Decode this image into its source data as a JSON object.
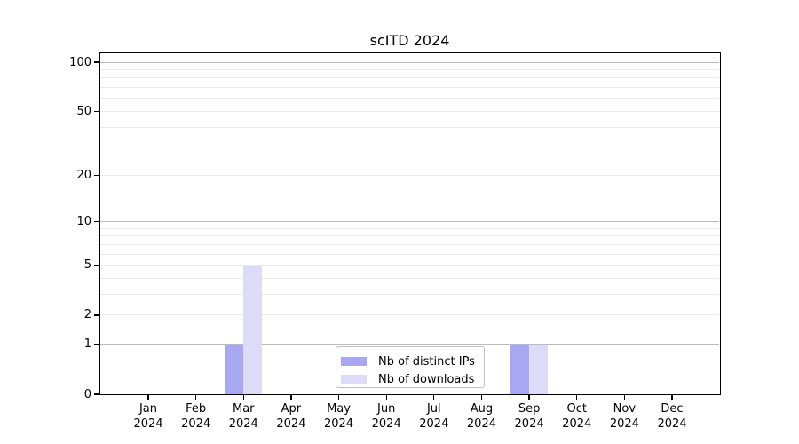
{
  "title": "scITD 2024",
  "colors": {
    "background": "#ffffff",
    "text": "#000000",
    "axis": "#000000",
    "grid_decade": "#bbbbbb",
    "grid_minor": "#e9e9e9",
    "legend_border": "#c0c0c0",
    "series_distinct_ips": "#a8a8f2",
    "series_downloads": "#dcdcf8"
  },
  "chart_data": {
    "type": "bar",
    "title": "scITD 2024",
    "categories": [
      "Jan 2024",
      "Feb 2024",
      "Mar 2024",
      "Apr 2024",
      "May 2024",
      "Jun 2024",
      "Jul 2024",
      "Aug 2024",
      "Sep 2024",
      "Oct 2024",
      "Nov 2024",
      "Dec 2024"
    ],
    "series": [
      {
        "name": "Nb of distinct IPs",
        "color": "#a8a8f2",
        "values": [
          0,
          0,
          1,
          0,
          0,
          0,
          0,
          0,
          1,
          0,
          0,
          0
        ]
      },
      {
        "name": "Nb of downloads",
        "color": "#dcdcf8",
        "values": [
          0,
          0,
          5,
          0,
          0,
          0,
          0,
          0,
          1,
          0,
          0,
          0
        ]
      }
    ],
    "xlabel": "",
    "ylabel": "",
    "y_scale": "log10(1+x)",
    "ylim": [
      0,
      113
    ],
    "y_ticks": [
      0,
      1,
      2,
      5,
      10,
      20,
      50,
      100
    ],
    "y_decade_gridlines": [
      1,
      10,
      100
    ],
    "y_minor_gridlines": [
      2,
      3,
      4,
      5,
      6,
      7,
      8,
      9,
      20,
      30,
      40,
      50,
      60,
      70,
      80,
      90
    ],
    "grid": true,
    "legend_position": "lower center"
  }
}
